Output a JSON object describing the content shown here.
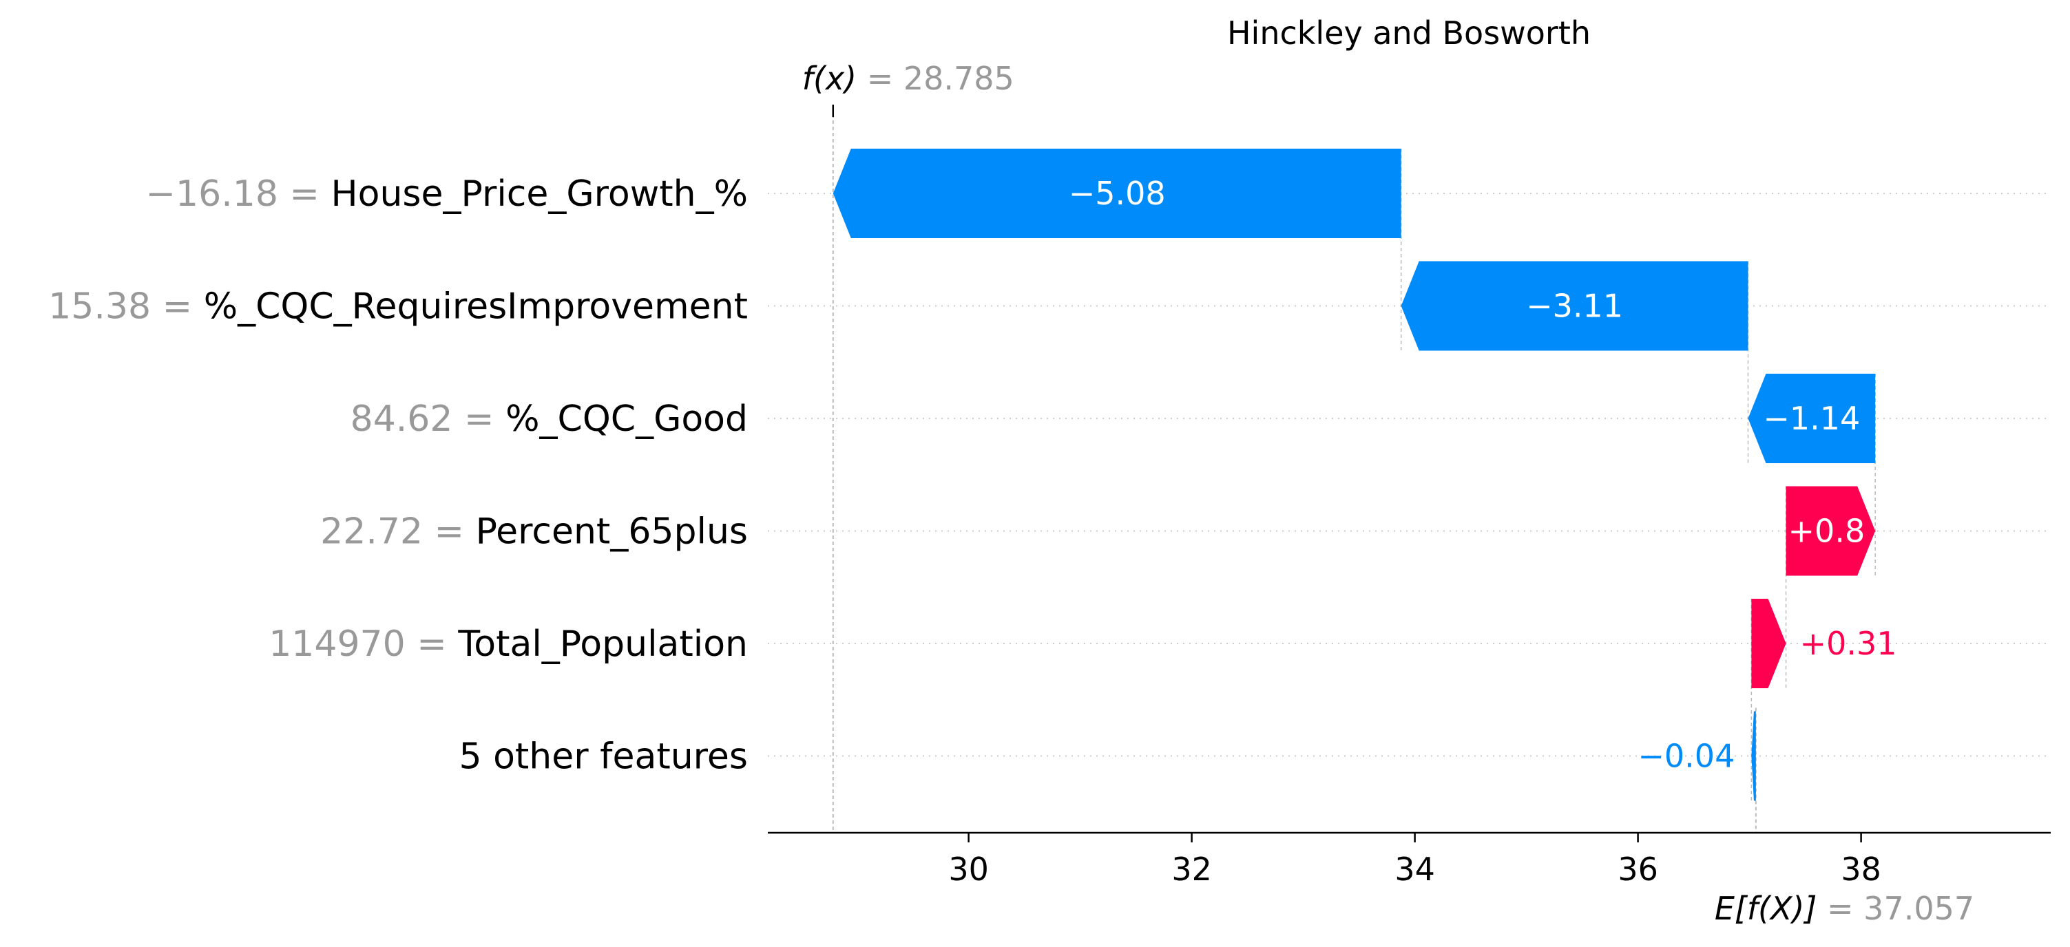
{
  "chart_data": {
    "type": "waterfall",
    "title": "Hinckley and Bosworth",
    "fx": {
      "label": "f(x)",
      "value": "28.785",
      "numeric": 28.785
    },
    "base": {
      "label": "E[f(X)]",
      "value": "37.057",
      "numeric": 37.057
    },
    "features": [
      {
        "value": "−16.18",
        "name": "House_Price_Growth_%",
        "contribution": -5.08,
        "label": "−5.08"
      },
      {
        "value": "15.38",
        "name": "%_CQC_RequiresImprovement",
        "contribution": -3.11,
        "label": "−3.11"
      },
      {
        "value": "84.62",
        "name": "%_CQC_Good",
        "contribution": -1.14,
        "label": "−1.14"
      },
      {
        "value": "22.72",
        "name": "Percent_65plus",
        "contribution": 0.8,
        "label": "+0.8"
      },
      {
        "value": "114970",
        "name": "Total_Population",
        "contribution": 0.31,
        "label": "+0.31"
      },
      {
        "value": "",
        "name": "5 other features",
        "contribution": -0.04,
        "label": "−0.04"
      }
    ],
    "xlim": [
      28.2,
      39.7
    ],
    "xticks": [
      "30",
      "32",
      "34",
      "36",
      "38"
    ],
    "colors": {
      "positive": "#ff0051",
      "negative": "#008bfb",
      "muted": "#999999"
    }
  }
}
